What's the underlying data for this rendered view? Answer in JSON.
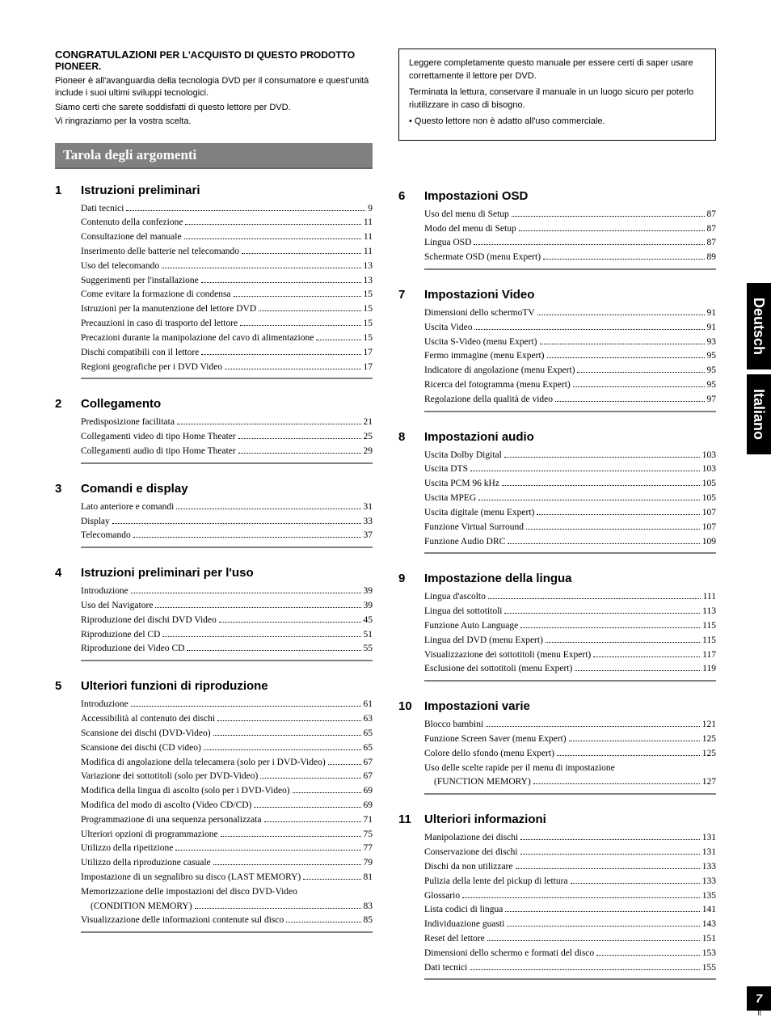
{
  "intro": {
    "congrat_bold": "CONGRATULAZIONI",
    "congrat_rest": " PER L'ACQUISTO DI QUESTO PRODOTTO PIONEER.",
    "p1": "Pioneer è all'avanguardia della tecnologia DVD per il consumatore e quest'unità include i suoi ultimi sviluppi tecnologici.",
    "p2": "Siamo certi che sarete soddisfatti di questo lettore per DVD.",
    "p3": "Vi ringraziamo per la vostra scelta."
  },
  "toc_title": "Tarola degli argomenti",
  "info_box": {
    "p1": "Leggere completamente questo manuale per essere certi di saper usare correttamente il lettore per DVD.",
    "p2": "Terminata la lettura, conservare il manuale in un luogo sicuro per poterlo riutilizzare in caso di bisogno.",
    "p3": "• Questo lettore non è adatto all'uso commerciale."
  },
  "tabs": {
    "t1": "Deutsch",
    "t2": "Italiano"
  },
  "page_number": "7",
  "page_lang": "It",
  "left_sections": [
    {
      "num": "1",
      "title": "Istruzioni preliminari",
      "items": [
        {
          "label": "Dati tecnici",
          "page": "9"
        },
        {
          "label": "Contenuto della confezione",
          "page": "11"
        },
        {
          "label": "Consultazione del manuale",
          "page": "11"
        },
        {
          "label": "Inserimento delle batterie nel telecomando",
          "page": "11"
        },
        {
          "label": "Uso del telecomando",
          "page": "13"
        },
        {
          "label": "Suggerimenti per l'installazione",
          "page": "13"
        },
        {
          "label": "Come evitare la formazione di condensa",
          "page": "15"
        },
        {
          "label": "Istruzioni per la manutenzione del lettore DVD",
          "page": "15"
        },
        {
          "label": "Precauzioni in caso di trasporto del lettore",
          "page": "15"
        },
        {
          "label": "Precazioni durante la manipolazione del cavo di alimentazione",
          "page": "15"
        },
        {
          "label": "Dischi compatibili con il lettore",
          "page": "17"
        },
        {
          "label": "Regioni geografiche per i DVD Video",
          "page": "17"
        }
      ]
    },
    {
      "num": "2",
      "title": "Collegamento",
      "items": [
        {
          "label": "Predisposizione facilitata",
          "page": "21"
        },
        {
          "label": "Collegamenti video di tipo Home Theater",
          "page": "25"
        },
        {
          "label": "Collegamenti audio di tipo Home Theater",
          "page": "29"
        }
      ]
    },
    {
      "num": "3",
      "title": "Comandi e display",
      "items": [
        {
          "label": "Lato anteriore e comandi",
          "page": "31"
        },
        {
          "label": "Display",
          "page": "33"
        },
        {
          "label": "Telecomando",
          "page": "37"
        }
      ]
    },
    {
      "num": "4",
      "title": "Istruzioni preliminari per l'uso",
      "items": [
        {
          "label": "Introduzione",
          "page": "39"
        },
        {
          "label": "Uso del Navigatore",
          "page": "39"
        },
        {
          "label": "Riproduzione dei dischi DVD Video",
          "page": "45"
        },
        {
          "label": "Riproduzione del CD",
          "page": "51"
        },
        {
          "label": "Riproduzione dei Video CD",
          "page": "55"
        }
      ]
    },
    {
      "num": "5",
      "title": "Ulteriori funzioni di riproduzione",
      "items": [
        {
          "label": "Introduzione",
          "page": "61"
        },
        {
          "label": "Accessibilità al contenuto dei dischi",
          "page": "63"
        },
        {
          "label": "Scansione dei dischi (DVD-Video)",
          "page": "65"
        },
        {
          "label": "Scansione dei dischi (CD video)",
          "page": "65"
        },
        {
          "label": "Modifica di angolazione della telecamera (solo per i DVD-Video)",
          "page": "67"
        },
        {
          "label": "Variazione dei sottotitoli (solo per DVD-Video)",
          "page": "67"
        },
        {
          "label": "Modifica della lingua di ascolto (solo per i DVD-Video)",
          "page": "69"
        },
        {
          "label": "Modifica del modo di ascolto (Video CD/CD)",
          "page": "69"
        },
        {
          "label": "Programmazione di una sequenza personalizzata",
          "page": "71"
        },
        {
          "label": "Ulteriori opzioni di programmazione",
          "page": "75"
        },
        {
          "label": "Utilizzo della ripetizione",
          "page": "77"
        },
        {
          "label": "Utilizzo della riproduzione casuale",
          "page": "79"
        },
        {
          "label": "Impostazione di un segnalibro su disco (LAST MEMORY)",
          "page": "81"
        },
        {
          "label": "Memorizzazione delle impostazioni del disco DVD-Video",
          "nopage": true
        },
        {
          "label": "(CONDITION MEMORY)",
          "page": "83",
          "sub": true
        },
        {
          "label": "Visualizzazione delle informazioni contenute sul disco",
          "page": "85"
        }
      ]
    }
  ],
  "right_sections": [
    {
      "num": "6",
      "title": "Impostazioni OSD",
      "items": [
        {
          "label": "Uso del menu di Setup",
          "page": "87"
        },
        {
          "label": "Modo del menu di Setup",
          "page": "87"
        },
        {
          "label": "Lingua OSD",
          "page": "87"
        },
        {
          "label": "Schermate OSD (menu Expert)",
          "page": "89"
        }
      ]
    },
    {
      "num": "7",
      "title": "Impostazioni Video",
      "items": [
        {
          "label": "Dimensioni dello schermoTV",
          "page": "91"
        },
        {
          "label": "Uscita Video",
          "page": "91"
        },
        {
          "label": "Uscita S-Video (menu Expert)",
          "page": "93"
        },
        {
          "label": "Fermo immagine (menu Expert)",
          "page": "95"
        },
        {
          "label": "Indicatore di angolazione (menu Expert)",
          "page": "95"
        },
        {
          "label": "Ricerca del fotogramma (menu Expert)",
          "page": "95"
        },
        {
          "label": "Regolazione della qualità de video",
          "page": "97"
        }
      ]
    },
    {
      "num": "8",
      "title": "Impostazioni audio",
      "items": [
        {
          "label": "Uscita Dolby Digital",
          "page": "103"
        },
        {
          "label": "Uscita DTS",
          "page": "103"
        },
        {
          "label": "Uscita PCM 96 kHz",
          "page": "105"
        },
        {
          "label": "Uscita MPEG",
          "page": "105"
        },
        {
          "label": "Uscita digitale (menu Expert)",
          "page": "107"
        },
        {
          "label": "Funzione Virtual Surround",
          "page": "107"
        },
        {
          "label": "Funzione Audio DRC",
          "page": "109"
        }
      ]
    },
    {
      "num": "9",
      "title": "Impostazione della lingua",
      "items": [
        {
          "label": "Lingua d'ascolto",
          "page": "111"
        },
        {
          "label": "Lingua dei sottotitoli",
          "page": "113"
        },
        {
          "label": "Funzione Auto Language",
          "page": "115"
        },
        {
          "label": "Lingua del DVD (menu Expert)",
          "page": "115"
        },
        {
          "label": "Visualizzazione dei sottotitoli (menu Expert)",
          "page": "117"
        },
        {
          "label": "Esclusione dei sottotitoli (menu Expert)",
          "page": "119"
        }
      ]
    },
    {
      "num": "10",
      "title": "Impostazioni varie",
      "items": [
        {
          "label": "Blocco bambini",
          "page": "121"
        },
        {
          "label": "Funzione Screen Saver (menu Expert)",
          "page": "125"
        },
        {
          "label": "Colore dello sfondo (menu Expert)",
          "page": "125"
        },
        {
          "label": "Uso delle scelte rapide per il menu di impostazione",
          "nopage": true
        },
        {
          "label": "(FUNCTION MEMORY)",
          "page": "127",
          "sub": true
        }
      ]
    },
    {
      "num": "11",
      "title": "Ulteriori informazioni",
      "items": [
        {
          "label": "Manipolazione dei dischi",
          "page": "131"
        },
        {
          "label": "Conservazione dei dischi",
          "page": "131"
        },
        {
          "label": "Dischi da non utilizzare",
          "page": "133"
        },
        {
          "label": "Pulizia della lente del pickup di lettura",
          "page": "133"
        },
        {
          "label": "Glossario",
          "page": "135"
        },
        {
          "label": "Lista codici di lingua",
          "page": "141"
        },
        {
          "label": "Individuazione guasti",
          "page": "143"
        },
        {
          "label": "Reset del lettore",
          "page": "151"
        },
        {
          "label": "Dimensioni dello schermo e formati del disco",
          "page": "153"
        },
        {
          "label": "Dati tecnici",
          "page": "155"
        }
      ]
    }
  ]
}
